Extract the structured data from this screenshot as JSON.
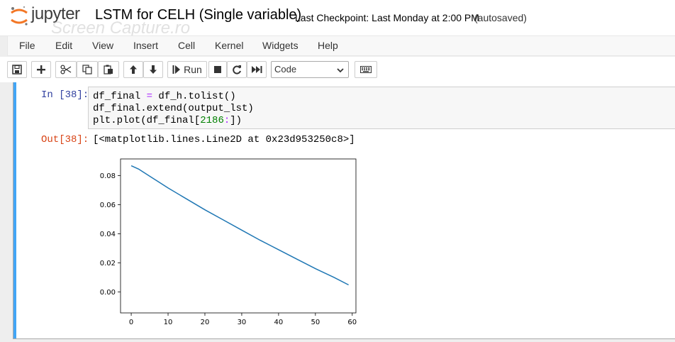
{
  "header": {
    "logo_text": "jupyter",
    "notebook_name": "LSTM for CELH (Single variable)",
    "checkpoint": "Last Checkpoint: Last Monday at 2:00 PM",
    "autosave": "(autosaved)",
    "watermark": "Screen Capture.ro"
  },
  "menu": [
    "File",
    "Edit",
    "View",
    "Insert",
    "Cell",
    "Kernel",
    "Widgets",
    "Help"
  ],
  "toolbar": {
    "run_label": "Run",
    "cell_type": "Code",
    "icons": [
      "save-icon",
      "plus-icon",
      "cut-icon",
      "copy-icon",
      "paste-icon",
      "arrow-up-icon",
      "arrow-down-icon",
      "run-icon",
      "stop-icon",
      "restart-icon",
      "fast-forward-icon",
      "keyboard-icon"
    ]
  },
  "cell": {
    "in_prompt": "In [38]:",
    "code": {
      "line1_a": "df_final ",
      "line1_op": "=",
      "line1_b": " df_h.tolist()",
      "line2": "df_final.extend(output_lst)",
      "line3_a": "plt.plot(df_final[",
      "line3_num": "2186",
      "line3_op": ":",
      "line3_b": "])"
    },
    "out_prompt": "Out[38]:",
    "out_text": "[<matplotlib.lines.Line2D at 0x23d953250c8>]"
  },
  "colors": {
    "cell_bar": "#42a5f5",
    "line": "#1f77b4",
    "in_prompt": "#303f9f",
    "out_prompt": "#d84315"
  },
  "chart_data": {
    "type": "line",
    "x_ticks": [
      "0",
      "10",
      "20",
      "30",
      "40",
      "50",
      "60"
    ],
    "y_ticks": [
      "0.00",
      "0.02",
      "0.04",
      "0.06",
      "0.08"
    ],
    "xlim": [
      -2.9,
      61
    ],
    "ylim": [
      -0.0145,
      0.0915
    ],
    "series": [
      {
        "x": [
          0,
          1,
          2,
          3,
          5,
          7,
          10,
          15,
          20,
          25,
          30,
          35,
          40,
          45,
          50,
          55,
          59
        ],
        "y": [
          0.0868,
          0.0857,
          0.0845,
          0.0829,
          0.0797,
          0.0764,
          0.0715,
          0.064,
          0.0565,
          0.0495,
          0.0425,
          0.0355,
          0.029,
          0.0225,
          0.016,
          0.01,
          0.0048
        ]
      }
    ]
  }
}
